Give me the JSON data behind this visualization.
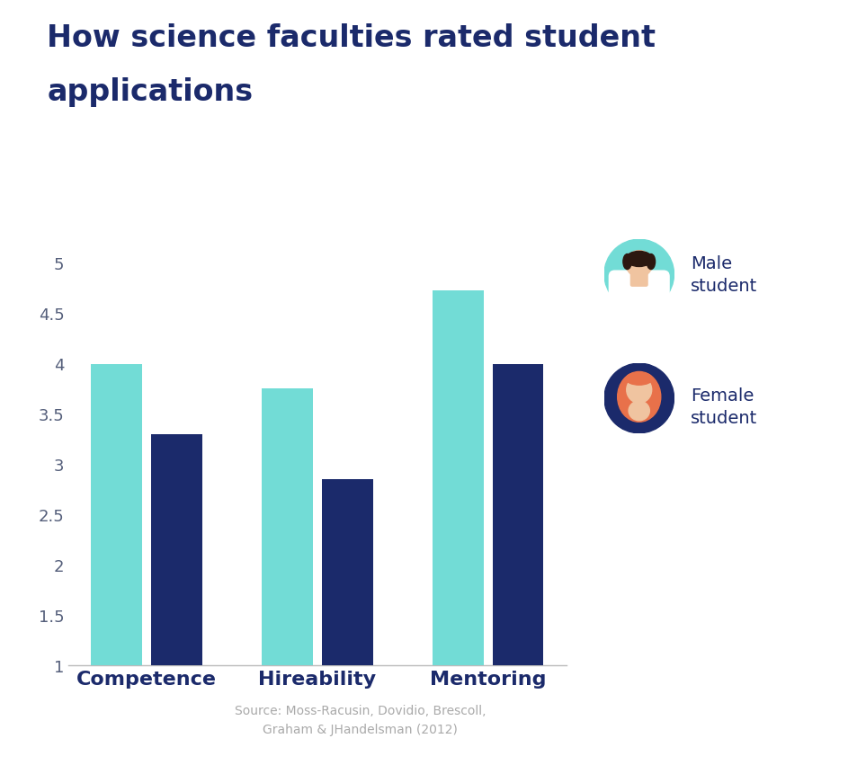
{
  "title_line1": "How science faculties rated student",
  "title_line2": "applications",
  "categories": [
    "Competence",
    "Hireability",
    "Mentoring"
  ],
  "male_values": [
    3.99,
    3.75,
    4.72
  ],
  "female_values": [
    3.3,
    2.85,
    3.99
  ],
  "male_color": "#72DCD6",
  "female_color": "#1B2A6B",
  "ylim": [
    1,
    5
  ],
  "yticks": [
    1,
    1.5,
    2,
    2.5,
    3,
    3.5,
    4,
    4.5,
    5
  ],
  "ytick_labels": [
    "1",
    "1.5",
    "2",
    "2.5",
    "3",
    "3.5",
    "4",
    "4.5",
    "5"
  ],
  "background_color": "#ffffff",
  "title_color": "#1B2A6B",
  "tick_color": "#545e7a",
  "source_text": "Source: Moss-Racusin, Dovidio, Brescoll,\nGraham & JHandelsman (2012)",
  "legend_male_label": "Male\nstudent",
  "legend_female_label": "Female\nstudent",
  "male_avatar_bg": "#72DCD6",
  "female_avatar_bg": "#1B2A6B",
  "skin_color": "#F0C4A0",
  "male_hair_color": "#2C1810",
  "female_hair_color": "#E8714A",
  "male_shirt_color": "#ffffff",
  "bar_width": 0.3,
  "bar_gap": 0.05
}
